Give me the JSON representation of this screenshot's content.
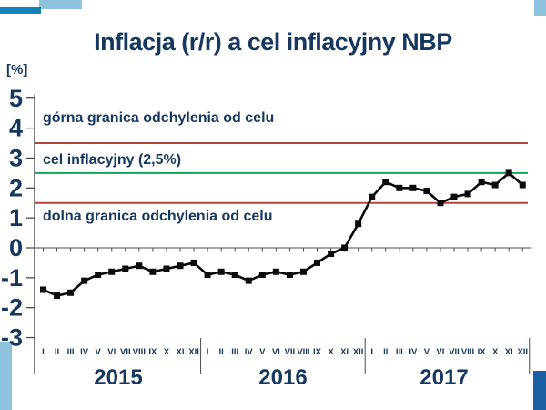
{
  "title": "Inflacja (r/r) a cel inflacyjny NBP",
  "colors": {
    "navy_text": "#17375e",
    "band_red": "#b5443c",
    "target_green": "#12a258",
    "series_black": "#0a0a0a",
    "axis_gray": "#4a4a4a",
    "zero_line_gray": "#888888",
    "accent_light_blue": "#8fc2dd",
    "accent_azure": "#1583bb",
    "accent_dark_blue": "#1b5fa5",
    "background": "#ffffff"
  },
  "chart_data": {
    "type": "line",
    "title": "Inflacja (r/r) a cel inflacyjny NBP",
    "ylabel": "[%]",
    "ylim": [
      -3,
      5
    ],
    "y_ticks": [
      5,
      4,
      3,
      2,
      1,
      0,
      -1,
      -2,
      -3
    ],
    "grid": false,
    "legend": "none",
    "marker": "square",
    "x_years": [
      "2015",
      "2016",
      "2017"
    ],
    "x_month_labels": [
      "I",
      "II",
      "III",
      "IV",
      "V",
      "VI",
      "VII",
      "VIII",
      "IX",
      "X",
      "XI",
      "XII"
    ],
    "series": [
      {
        "name": "Inflacja (r/r)",
        "color": "#0a0a0a",
        "values": [
          -1.4,
          -1.6,
          -1.5,
          -1.1,
          -0.9,
          -0.8,
          -0.7,
          -0.6,
          -0.8,
          -0.7,
          -0.6,
          -0.5,
          -0.9,
          -0.8,
          -0.9,
          -1.1,
          -0.9,
          -0.8,
          -0.9,
          -0.8,
          -0.5,
          -0.2,
          0.0,
          0.8,
          1.7,
          2.2,
          2.0,
          2.0,
          1.9,
          1.5,
          1.7,
          1.8,
          2.2,
          2.1,
          2.5,
          2.1
        ]
      }
    ],
    "reference_lines": [
      {
        "label": "górna granica odchylenia od celu",
        "value": 3.5,
        "color": "#b5443c"
      },
      {
        "label": "cel inflacyjny (2,5%)",
        "value": 2.5,
        "color": "#12a258"
      },
      {
        "label": "dolna granica odchylenia od celu",
        "value": 1.5,
        "color": "#b5443c"
      }
    ]
  }
}
